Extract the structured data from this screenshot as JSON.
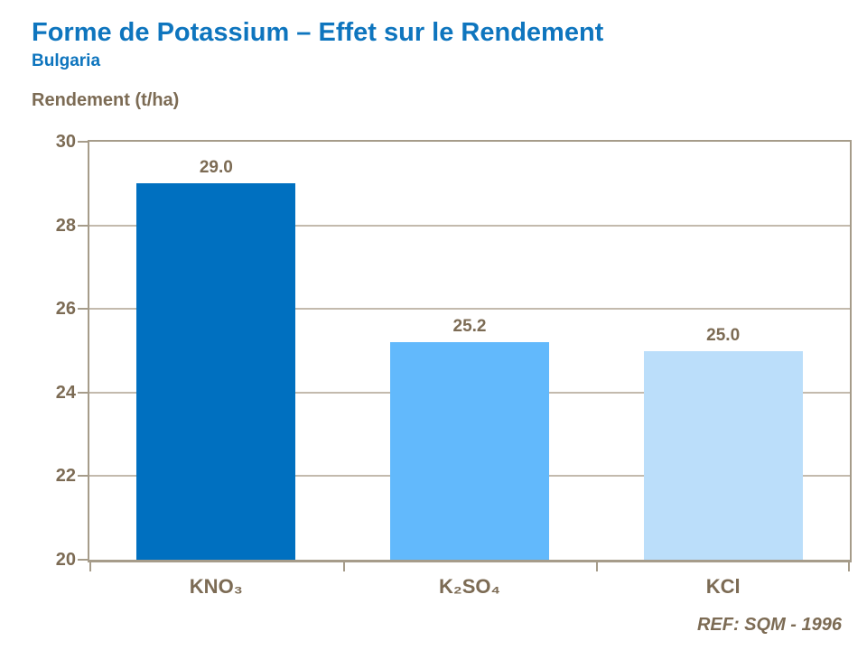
{
  "header": {
    "title": "Forme de Potassium – Effet sur le Rendement",
    "subtitle": "Bulgaria"
  },
  "footer": {
    "ref_label": "REF: SQM - 1996"
  },
  "colors": {
    "title_blue": "#0e75be",
    "text_brown": "#7c6b54",
    "gridline": "#c3baad",
    "axis_border": "#a69c8a"
  },
  "chart_data": {
    "type": "bar",
    "title": "Forme de Potassium – Effet sur le Rendement",
    "subtitle": "Bulgaria",
    "ylabel": "Rendement (t/ha)",
    "xlabel": "",
    "categories": [
      "KNO₃",
      "K₂SO₄",
      "KCl"
    ],
    "values": [
      29.0,
      25.2,
      25.0
    ],
    "value_labels": [
      "29.0",
      "25.2",
      "25.0"
    ],
    "bar_colors": [
      "#0070c0",
      "#62b9fc",
      "#bbdefa"
    ],
    "ylim": [
      20,
      30
    ],
    "ytick_step": 2,
    "grid": true,
    "legend": false
  }
}
